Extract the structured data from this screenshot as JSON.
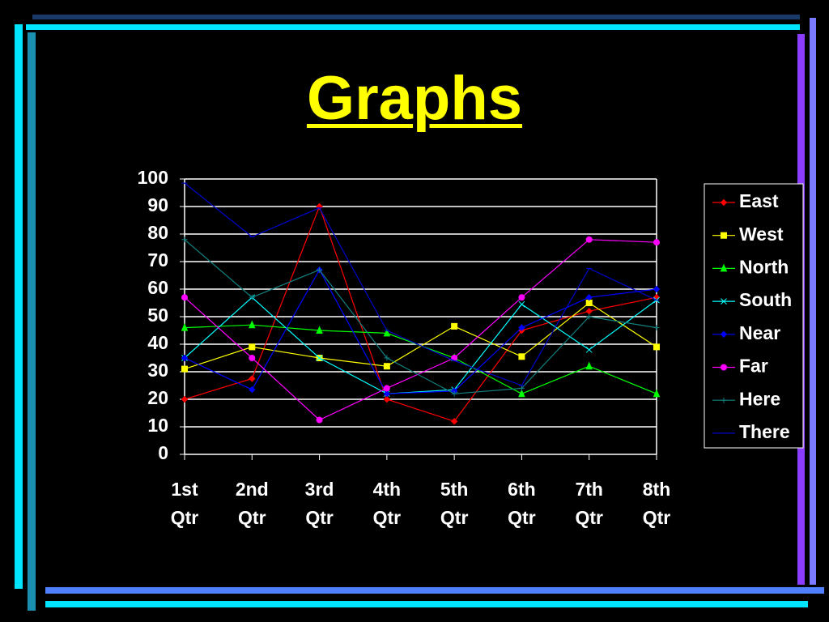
{
  "title": "Graphs",
  "chart_data": {
    "type": "line",
    "categories": [
      "1st Qtr",
      "2nd Qtr",
      "3rd Qtr",
      "4th Qtr",
      "5th Qtr",
      "6th Qtr",
      "7th Qtr",
      "8th Qtr"
    ],
    "ylim": [
      0,
      100
    ],
    "yticks": [
      0,
      10,
      20,
      30,
      40,
      50,
      60,
      70,
      80,
      90,
      100
    ],
    "grid": true,
    "legend": "right",
    "series": [
      {
        "name": "East",
        "color": "#ff0000",
        "marker": "diamond",
        "values": [
          20,
          27.5,
          90,
          20,
          12,
          45,
          52,
          57
        ]
      },
      {
        "name": "West",
        "color": "#ffff00",
        "marker": "square",
        "values": [
          31,
          39,
          35,
          32,
          46.5,
          35.5,
          55,
          39
        ]
      },
      {
        "name": "North",
        "color": "#00ff00",
        "marker": "triangle",
        "values": [
          46,
          47,
          45,
          44,
          35,
          22,
          32,
          22
        ]
      },
      {
        "name": "South",
        "color": "#00ffff",
        "marker": "x",
        "values": [
          35,
          57,
          35,
          22,
          23.5,
          54.5,
          38,
          56
        ]
      },
      {
        "name": "Near",
        "color": "#0000ff",
        "marker": "diamond",
        "values": [
          35,
          23.5,
          67,
          22,
          23,
          46,
          57,
          60
        ]
      },
      {
        "name": "Far",
        "color": "#ff00ff",
        "marker": "circle",
        "values": [
          57,
          35,
          12.5,
          24,
          35,
          57,
          78,
          77
        ]
      },
      {
        "name": "Here",
        "color": "#108080",
        "marker": "plus",
        "values": [
          78,
          57,
          67,
          35,
          22,
          24,
          50,
          46
        ]
      },
      {
        "name": "There",
        "color": "#0000cc",
        "marker": "dash",
        "values": [
          98.5,
          79,
          89.5,
          45,
          34,
          25,
          67.5,
          56
        ]
      }
    ]
  }
}
